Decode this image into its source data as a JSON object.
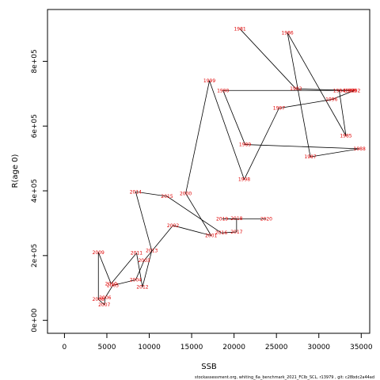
{
  "chart_data": {
    "type": "scatter",
    "title": "",
    "xlabel": "SSB",
    "ylabel": "R(age 0)",
    "xlim": [
      -2000,
      36000
    ],
    "ylim": [
      -40000,
      960000
    ],
    "xticks": [
      {
        "value": 0,
        "label": "0"
      },
      {
        "value": 5000,
        "label": "5000"
      },
      {
        "value": 10000,
        "label": "10000"
      },
      {
        "value": 15000,
        "label": "15000"
      },
      {
        "value": 20000,
        "label": "20000"
      },
      {
        "value": 25000,
        "label": "25000"
      },
      {
        "value": 30000,
        "label": "30000"
      },
      {
        "value": 35000,
        "label": "35000"
      }
    ],
    "yticks": [
      {
        "value": 0,
        "label": "0e+00"
      },
      {
        "value": 200000,
        "label": "2e+05"
      },
      {
        "value": 400000,
        "label": "4e+05"
      },
      {
        "value": 600000,
        "label": "6e+05"
      },
      {
        "value": 800000,
        "label": "8e+05"
      }
    ],
    "connected": true,
    "grid": false,
    "points": [
      {
        "year": "1981",
        "x": 20700,
        "y": 900000
      },
      {
        "year": "1982",
        "x": 27300,
        "y": 715000
      },
      {
        "year": "1983",
        "x": 33600,
        "y": 710000
      },
      {
        "year": "1984",
        "x": 32400,
        "y": 710000
      },
      {
        "year": "1985",
        "x": 33200,
        "y": 570000
      },
      {
        "year": "1986",
        "x": 26300,
        "y": 888000
      },
      {
        "year": "1987",
        "x": 29000,
        "y": 505000
      },
      {
        "year": "1988",
        "x": 34800,
        "y": 530000
      },
      {
        "year": "1989",
        "x": 21300,
        "y": 543000
      },
      {
        "year": "1990",
        "x": 18700,
        "y": 710000
      },
      {
        "year": "1991",
        "x": 33800,
        "y": 710000
      },
      {
        "year": "1992",
        "x": 34200,
        "y": 710000
      },
      {
        "year": "1996",
        "x": 31500,
        "y": 682000
      },
      {
        "year": "1997",
        "x": 25300,
        "y": 655000
      },
      {
        "year": "1998",
        "x": 21200,
        "y": 435000
      },
      {
        "year": "1999",
        "x": 17100,
        "y": 740000
      },
      {
        "year": "2000",
        "x": 14300,
        "y": 392000
      },
      {
        "year": "2001",
        "x": 17300,
        "y": 262000
      },
      {
        "year": "2002",
        "x": 12800,
        "y": 293000
      },
      {
        "year": "2003",
        "x": 9400,
        "y": 185000
      },
      {
        "year": "2004",
        "x": 8400,
        "y": 125000
      },
      {
        "year": "2005",
        "x": 5700,
        "y": 108000
      },
      {
        "year": "2006",
        "x": 4800,
        "y": 70000
      },
      {
        "year": "2007",
        "x": 4700,
        "y": 48000
      },
      {
        "year": "2008",
        "x": 4000,
        "y": 65000
      },
      {
        "year": "2009",
        "x": 4000,
        "y": 210000
      },
      {
        "year": "2010",
        "x": 5500,
        "y": 113000
      },
      {
        "year": "2011",
        "x": 8500,
        "y": 208000
      },
      {
        "year": "2012",
        "x": 9200,
        "y": 103000
      },
      {
        "year": "2013",
        "x": 10300,
        "y": 215000
      },
      {
        "year": "2014",
        "x": 8400,
        "y": 397000
      },
      {
        "year": "2015",
        "x": 12100,
        "y": 383000
      },
      {
        "year": "2016",
        "x": 18500,
        "y": 270000
      },
      {
        "year": "2017",
        "x": 20300,
        "y": 273000
      },
      {
        "year": "2018",
        "x": 20300,
        "y": 314000
      },
      {
        "year": "2019",
        "x": 18600,
        "y": 313000
      },
      {
        "year": "2020",
        "x": 23800,
        "y": 313000
      }
    ],
    "path_order": [
      "1981",
      "1982",
      "1983",
      "1984",
      "1985",
      "1986",
      "1987",
      "1988",
      "1989",
      "1990",
      "1991",
      "1992",
      "1996",
      "1997",
      "1998",
      "1999",
      "2000",
      "2001",
      "2002",
      "2003",
      "2004",
      "2005",
      "2006",
      "2007",
      "2008",
      "2009",
      "2010",
      "2011",
      "2012",
      "2013",
      "2014",
      "2015",
      "2016",
      "2017",
      "2018",
      "2019",
      "2020"
    ],
    "label_color": "#e00000",
    "line_color": "#000000"
  },
  "footer": "stockassessment.org,  whiting_6a_benchmark_2021_FCIb_SCL,  r13979 ,  git:  c28bdc2a44ad"
}
